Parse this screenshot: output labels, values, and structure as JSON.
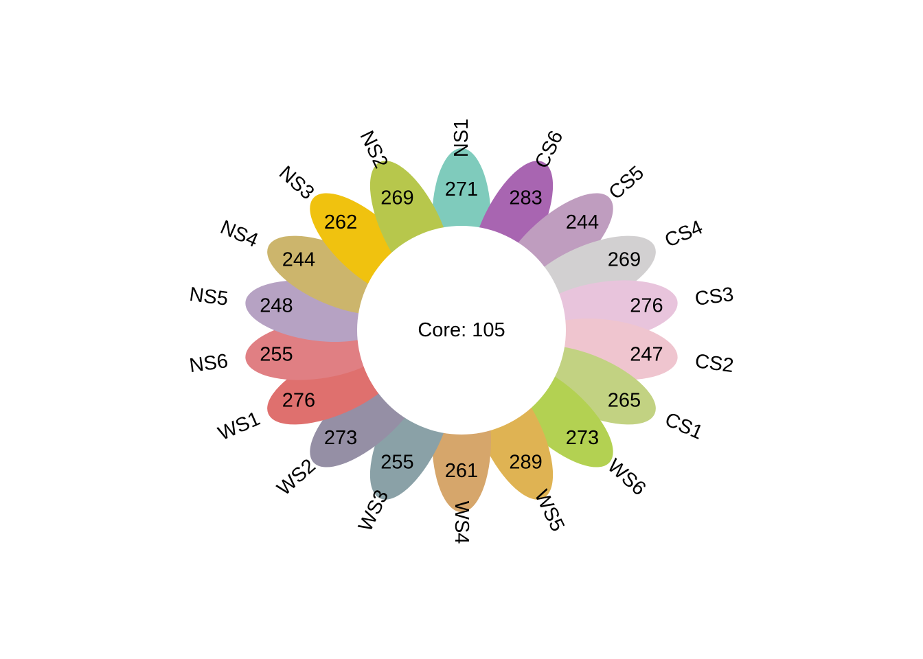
{
  "chart_data": {
    "type": "flower",
    "core": {
      "label": "Core: 105",
      "value": 105
    },
    "petals": [
      {
        "name": "NS1",
        "value": 271,
        "color": "#7fcbbc"
      },
      {
        "name": "CS6",
        "value": 283,
        "color": "#a865b1"
      },
      {
        "name": "CS5",
        "value": 244,
        "color": "#bf9dbf"
      },
      {
        "name": "CS4",
        "value": 269,
        "color": "#d2d0d1"
      },
      {
        "name": "CS3",
        "value": 276,
        "color": "#e8c4dc"
      },
      {
        "name": "CS2",
        "value": 247,
        "color": "#efc5cf"
      },
      {
        "name": "CS1",
        "value": 265,
        "color": "#c2d282"
      },
      {
        "name": "WS6",
        "value": 273,
        "color": "#b3d152"
      },
      {
        "name": "WS5",
        "value": 289,
        "color": "#dfb353"
      },
      {
        "name": "WS4",
        "value": 261,
        "color": "#d6a66b"
      },
      {
        "name": "WS3",
        "value": 255,
        "color": "#8aa1a7"
      },
      {
        "name": "WS2",
        "value": 273,
        "color": "#958fa5"
      },
      {
        "name": "WS1",
        "value": 276,
        "color": "#df706e"
      },
      {
        "name": "NS6",
        "value": 255,
        "color": "#e07f83"
      },
      {
        "name": "NS5",
        "value": 248,
        "color": "#b6a2c3"
      },
      {
        "name": "NS4",
        "value": 244,
        "color": "#ccb56c"
      },
      {
        "name": "NS3",
        "value": 262,
        "color": "#f0c20f"
      },
      {
        "name": "NS2",
        "value": 269,
        "color": "#b7c74c"
      }
    ]
  }
}
